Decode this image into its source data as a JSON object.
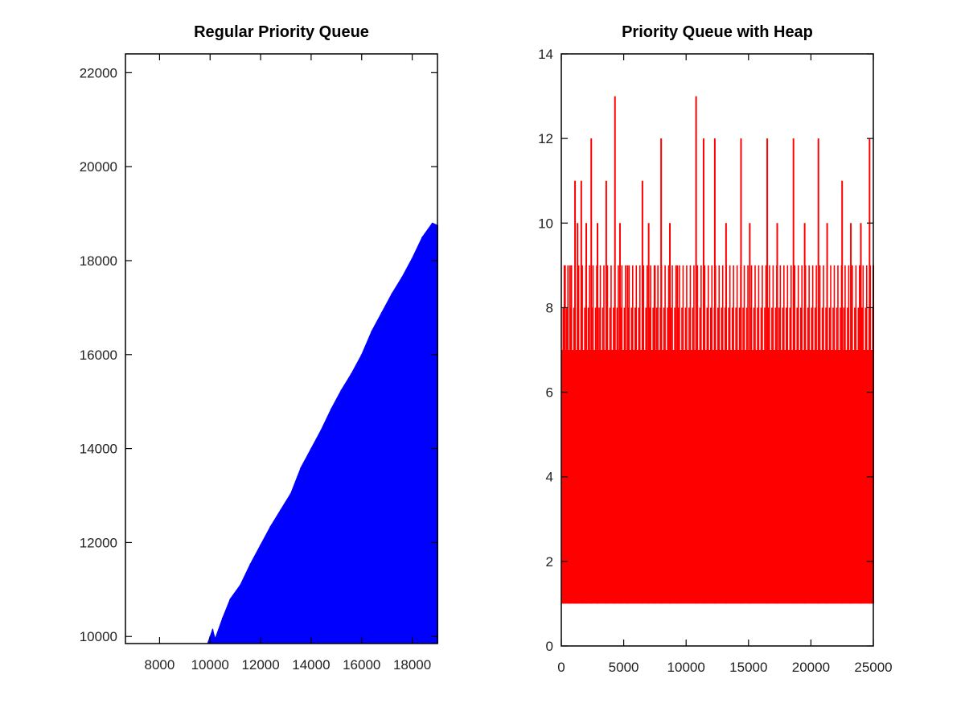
{
  "chart_data": [
    {
      "type": "bar",
      "title": "Regular Priority Queue",
      "xlabel": "",
      "ylabel": "",
      "xlim": [
        6650,
        19000
      ],
      "ylim": [
        9850,
        22400
      ],
      "x_ticks": [
        8000,
        10000,
        12000,
        14000,
        16000,
        18000
      ],
      "y_ticks": [
        10000,
        12000,
        14000,
        16000,
        18000,
        20000,
        22000
      ],
      "grid": false,
      "color": "#0000ff",
      "description_of_values": "one bar per element index; value grows roughly linearly with index",
      "points": [
        [
          9900,
          9850
        ],
        [
          10000,
          10000
        ],
        [
          10100,
          10150
        ],
        [
          10200,
          9950
        ],
        [
          10500,
          10400
        ],
        [
          10800,
          10800
        ],
        [
          11200,
          11100
        ],
        [
          11600,
          11550
        ],
        [
          12000,
          11950
        ],
        [
          12400,
          12350
        ],
        [
          12800,
          12700
        ],
        [
          13200,
          13050
        ],
        [
          13600,
          13600
        ],
        [
          14000,
          14000
        ],
        [
          14400,
          14400
        ],
        [
          14800,
          14850
        ],
        [
          15200,
          15250
        ],
        [
          15600,
          15600
        ],
        [
          16000,
          16000
        ],
        [
          16400,
          16500
        ],
        [
          16800,
          16900
        ],
        [
          17200,
          17300
        ],
        [
          17600,
          17650
        ],
        [
          18000,
          18050
        ],
        [
          18400,
          18500
        ],
        [
          18800,
          18800
        ],
        [
          19000,
          18750
        ]
      ]
    },
    {
      "type": "bar",
      "title": "Priority Queue with Heap",
      "xlabel": "",
      "ylabel": "",
      "xlim": [
        0,
        25000
      ],
      "ylim": [
        0,
        14
      ],
      "x_ticks": [
        0,
        5000,
        10000,
        15000,
        20000,
        25000
      ],
      "y_ticks": [
        0,
        2,
        4,
        6,
        8,
        10,
        12,
        14
      ],
      "grid": false,
      "color": "#ff0000",
      "baseline_value": 1,
      "typical_range": [
        7,
        9
      ],
      "points": [
        [
          300,
          9
        ],
        [
          700,
          9
        ],
        [
          1100,
          11
        ],
        [
          1300,
          10
        ],
        [
          1600,
          11
        ],
        [
          2000,
          10
        ],
        [
          2400,
          12
        ],
        [
          2900,
          10
        ],
        [
          3600,
          11
        ],
        [
          4300,
          13
        ],
        [
          4700,
          10
        ],
        [
          5300,
          9
        ],
        [
          6500,
          11
        ],
        [
          7000,
          10
        ],
        [
          7500,
          9
        ],
        [
          8000,
          12
        ],
        [
          8700,
          10
        ],
        [
          9300,
          9
        ],
        [
          10800,
          13
        ],
        [
          11400,
          12
        ],
        [
          12300,
          12
        ],
        [
          13200,
          10
        ],
        [
          14400,
          12
        ],
        [
          15100,
          10
        ],
        [
          16500,
          12
        ],
        [
          17300,
          10
        ],
        [
          18600,
          12
        ],
        [
          19500,
          10
        ],
        [
          20600,
          12
        ],
        [
          21300,
          10
        ],
        [
          22500,
          11
        ],
        [
          23200,
          10
        ],
        [
          24000,
          10
        ],
        [
          24700,
          12
        ],
        [
          25000,
          9
        ]
      ]
    }
  ]
}
